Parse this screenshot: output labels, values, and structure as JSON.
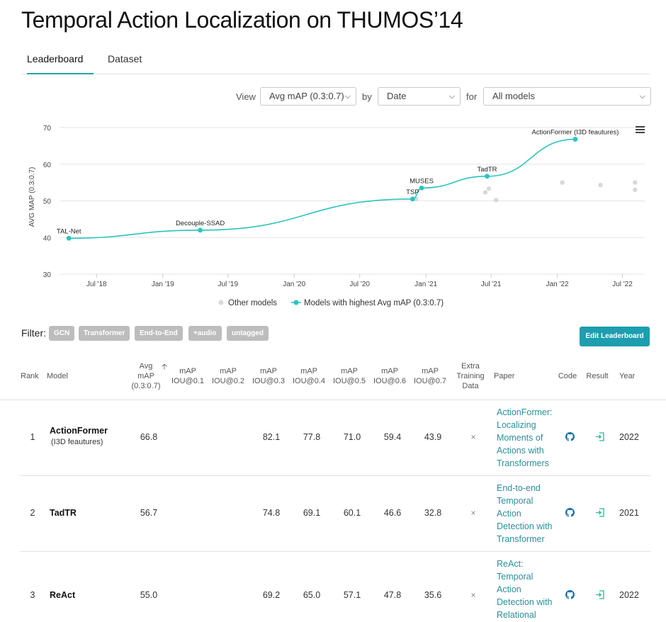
{
  "page": {
    "title": "Temporal Action Localization on THUMOS’14"
  },
  "tabs": [
    {
      "label": "Leaderboard",
      "active": true
    },
    {
      "label": "Dataset",
      "active": false
    }
  ],
  "controls": {
    "view_label": "View",
    "view_value": "Avg mAP (0.3:0.7)",
    "by_label": "by",
    "by_value": "Date",
    "for_label": "for",
    "for_value": "All models"
  },
  "chart_data": {
    "type": "scatter",
    "ylabel": "AVG MAP (0.3:0.7)",
    "ylim": [
      30,
      70
    ],
    "y_ticks": [
      "30",
      "40",
      "50",
      "60",
      "70"
    ],
    "x_ticks": [
      "Jul '18",
      "Jan '19",
      "Jul '19",
      "Jan '20",
      "Jul '20",
      "Jan '21",
      "Jul '21",
      "Jan '22",
      "Jul '22"
    ],
    "grid": true,
    "legend_position": "bottom",
    "legend": [
      "Other models",
      "Models with highest Avg mAP (0.3:0.7)"
    ],
    "series": [
      {
        "name": "Models with highest Avg mAP (0.3:0.7)",
        "color": "#2ac5be",
        "points": [
          {
            "x": "2018-04-15",
            "y": 39.8,
            "label": "TAL-Net"
          },
          {
            "x": "2019-04-15",
            "y": 42.0,
            "label": "Decouple-SSAD"
          },
          {
            "x": "2020-11-25",
            "y": 50.5,
            "label": "TSP"
          },
          {
            "x": "2020-12-20",
            "y": 53.5,
            "label": "MUSES"
          },
          {
            "x": "2021-06-20",
            "y": 56.7,
            "label": "TadTR"
          },
          {
            "x": "2022-02-20",
            "y": 66.8,
            "label": "ActionFormer (I3D feautures)"
          }
        ]
      },
      {
        "name": "Other models",
        "color": "#d8d8d8",
        "points": [
          {
            "x": "2020-12-05",
            "y": 50.5
          },
          {
            "x": "2021-06-15",
            "y": 52.3
          },
          {
            "x": "2021-06-25",
            "y": 53.3
          },
          {
            "x": "2021-07-15",
            "y": 50.2
          },
          {
            "x": "2022-01-15",
            "y": 55.0
          },
          {
            "x": "2022-05-01",
            "y": 54.3
          },
          {
            "x": "2022-08-05",
            "y": 55.0
          },
          {
            "x": "2022-08-05",
            "y": 53.0
          }
        ]
      }
    ]
  },
  "filter": {
    "label": "Filter:",
    "tags": [
      "GCN",
      "Transformer",
      "End-to-End",
      "+audio",
      "untagged"
    ],
    "edit_button": "Edit Leaderboard"
  },
  "table": {
    "headers": {
      "rank": "Rank",
      "model": "Model",
      "avg": [
        "Avg",
        "mAP",
        "(0.3:0.7)"
      ],
      "iou01": [
        "mAP",
        "IOU@0.1"
      ],
      "iou02": [
        "mAP",
        "IOU@0.2"
      ],
      "iou03": [
        "mAP",
        "IOU@0.3"
      ],
      "iou04": [
        "mAP",
        "IOU@0.4"
      ],
      "iou05": [
        "mAP",
        "IOU@0.5"
      ],
      "iou06": [
        "mAP",
        "IOU@0.6"
      ],
      "iou07": [
        "mAP",
        "IOU@0.7"
      ],
      "extra": [
        "Extra",
        "Training",
        "Data"
      ],
      "paper": "Paper",
      "code": "Code",
      "result": "Result",
      "year": "Year"
    },
    "rows": [
      {
        "rank": "1",
        "model": "ActionFormer",
        "model_sub": "(I3D feautures)",
        "avg": "66.8",
        "iou01": "",
        "iou02": "",
        "iou03": "82.1",
        "iou04": "77.8",
        "iou05": "71.0",
        "iou06": "59.4",
        "iou07": "43.9",
        "extra": "×",
        "paper": [
          "ActionFormer:",
          "Localizing",
          "Moments of",
          "Actions with",
          "Transformers"
        ],
        "year": "2022"
      },
      {
        "rank": "2",
        "model": "TadTR",
        "model_sub": "",
        "avg": "56.7",
        "iou01": "",
        "iou02": "",
        "iou03": "74.8",
        "iou04": "69.1",
        "iou05": "60.1",
        "iou06": "46.6",
        "iou07": "32.8",
        "extra": "×",
        "paper": [
          "End-to-end",
          "Temporal",
          "Action",
          "Detection with",
          "Transformer"
        ],
        "year": "2021"
      },
      {
        "rank": "3",
        "model": "ReAct",
        "model_sub": "",
        "avg": "55.0",
        "iou01": "",
        "iou02": "",
        "iou03": "69.2",
        "iou04": "65.0",
        "iou05": "57.1",
        "iou06": "47.8",
        "iou07": "35.6",
        "extra": "×",
        "paper": [
          "ReAct:",
          "Temporal",
          "Action",
          "Detection with",
          "Relational"
        ],
        "year": "2022"
      }
    ]
  },
  "colors": {
    "accent": "#1ea7a9",
    "button": "#1d9eaf",
    "link": "#2a8f9a",
    "tag": "#bdbdbd"
  }
}
